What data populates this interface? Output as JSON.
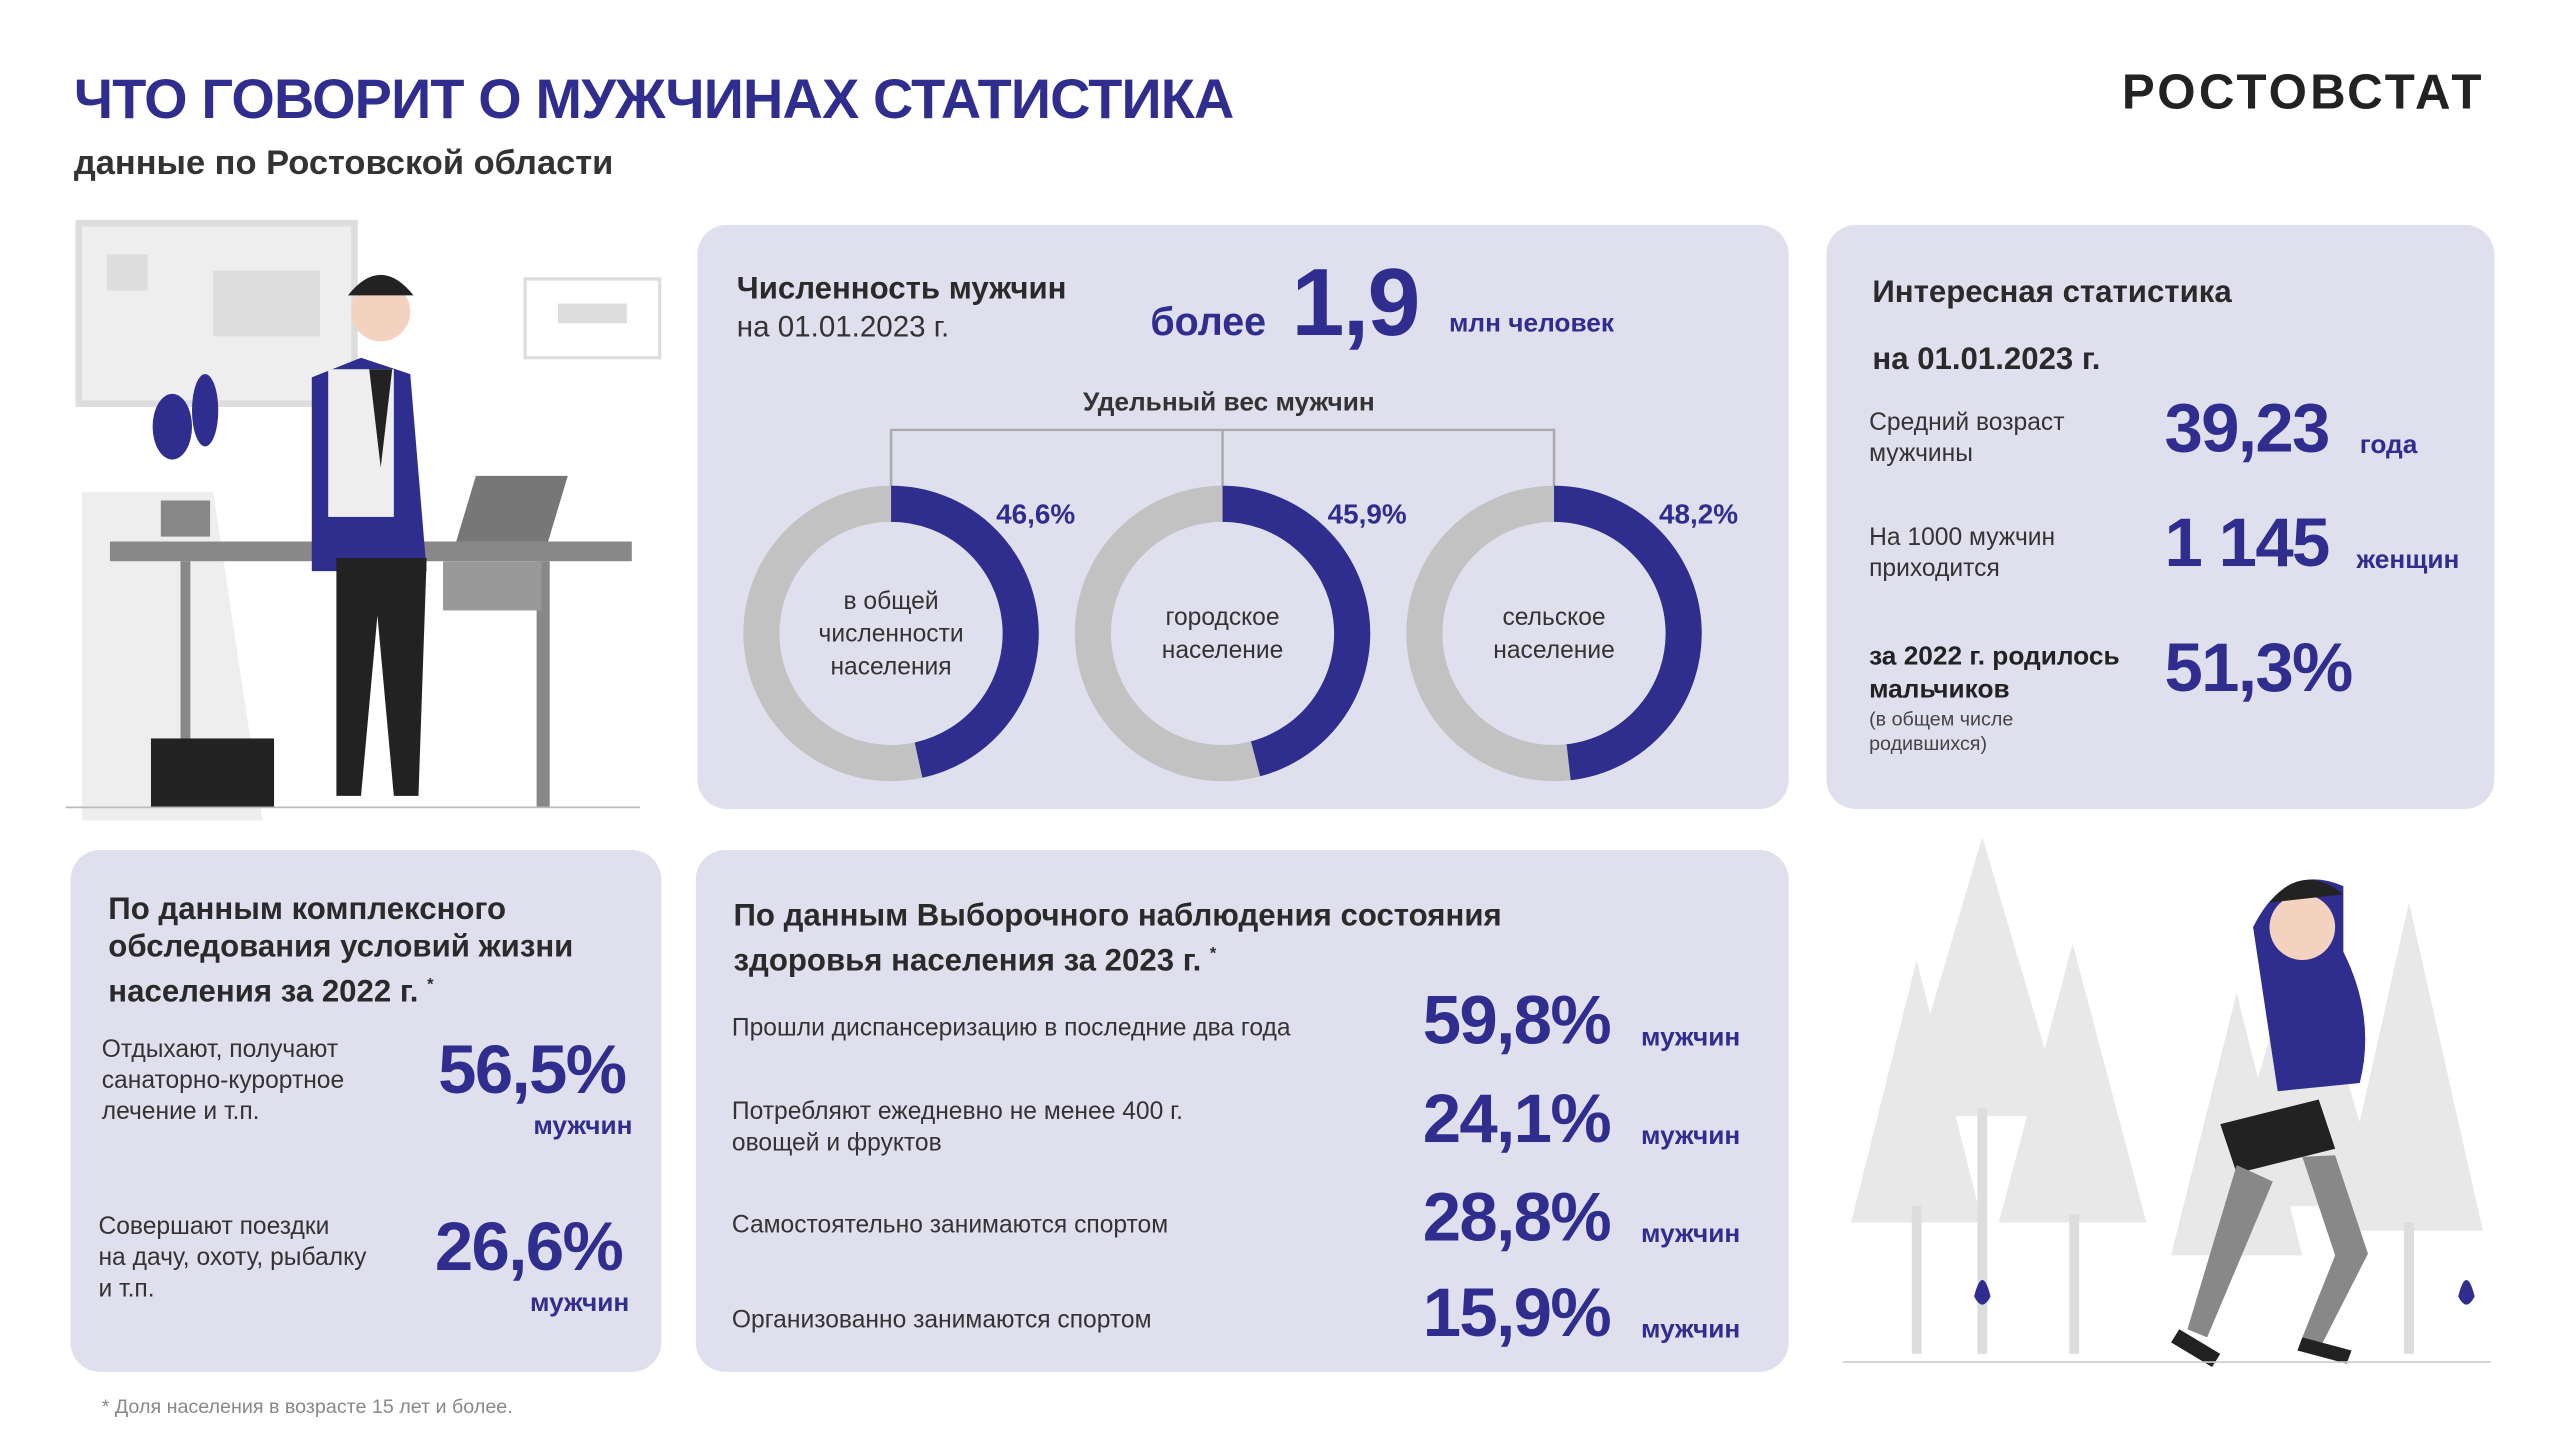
{
  "header": {
    "title": "ЧТО ГОВОРИТ О МУЖЧИНАХ СТАТИСТИКА",
    "subtitle": "данные по Ростовской области",
    "logo": "РОСТОВСТАТ"
  },
  "colors": {
    "accent": "#2f2d8e",
    "gray": "#c2c2c2",
    "panel": "#e0dfee"
  },
  "population": {
    "title": "Численность мужчин",
    "date": "на 01.01.2023 г.",
    "prefix": "более",
    "value": "1,9",
    "unit": "млн человек",
    "share_title": "Удельный вес мужчин"
  },
  "chart_data": {
    "type": "pie",
    "title": "Удельный вес мужчин",
    "categories": [
      "в общей численности населения",
      "городское население",
      "сельское население"
    ],
    "labels": [
      "46,6%",
      "45,9%",
      "48,2%"
    ],
    "values": [
      46.6,
      45.9,
      48.2
    ]
  },
  "donut_labels": [
    [
      "в общей",
      "численности",
      "населения"
    ],
    [
      "городское",
      "население"
    ],
    [
      "сельское",
      "население"
    ]
  ],
  "interesting": {
    "title": "Интересная статистика",
    "date": "на 01.01.2023 г.",
    "items": [
      {
        "label1": "Средний возраст",
        "label2": "мужчины",
        "value": "39,23",
        "unit": "года"
      },
      {
        "label1": "На 1000 мужчин",
        "label2": "приходится",
        "value": "1 145",
        "unit": "женщин"
      },
      {
        "label1": "за 2022 г. родилось",
        "label2": "мальчиков",
        "note1": "(в общем числе",
        "note2": "родившихся)",
        "value": "51,3%"
      }
    ]
  },
  "survey1": {
    "title1": "По данным комплексного",
    "title2": "обследования условий жизни",
    "title3": "населения за 2022 г.",
    "star": "*",
    "items": [
      {
        "l1": "Отдыхают, получают",
        "l2": "санаторно-курортное",
        "l3": "лечение и т.п.",
        "value": "56,5%",
        "unit": "мужчин"
      },
      {
        "l1": "Совершают поездки",
        "l2": "на дачу, охоту, рыбалку",
        "l3": "и т.п.",
        "value": "26,6%",
        "unit": "мужчин"
      }
    ]
  },
  "survey2": {
    "title1": "По данным  Выборочного наблюдения состояния",
    "title2": "здоровья населения за 2023 г.",
    "star": "*",
    "items": [
      {
        "l1": "Прошли диспансеризацию в последние два года",
        "l2": "",
        "value": "59,8%",
        "unit": "мужчин"
      },
      {
        "l1": "Потребляют ежедневно не менее 400 г.",
        "l2": "овощей и фруктов",
        "value": "24,1%",
        "unit": "мужчин"
      },
      {
        "l1": "Самостоятельно занимаются спортом",
        "l2": "",
        "value": "28,8%",
        "unit": "мужчин"
      },
      {
        "l1": "Организованно занимаются спортом",
        "l2": "",
        "value": "15,9%",
        "unit": "мужчин"
      }
    ]
  },
  "footnote": "* Доля населения в возрасте 15 лет и более."
}
